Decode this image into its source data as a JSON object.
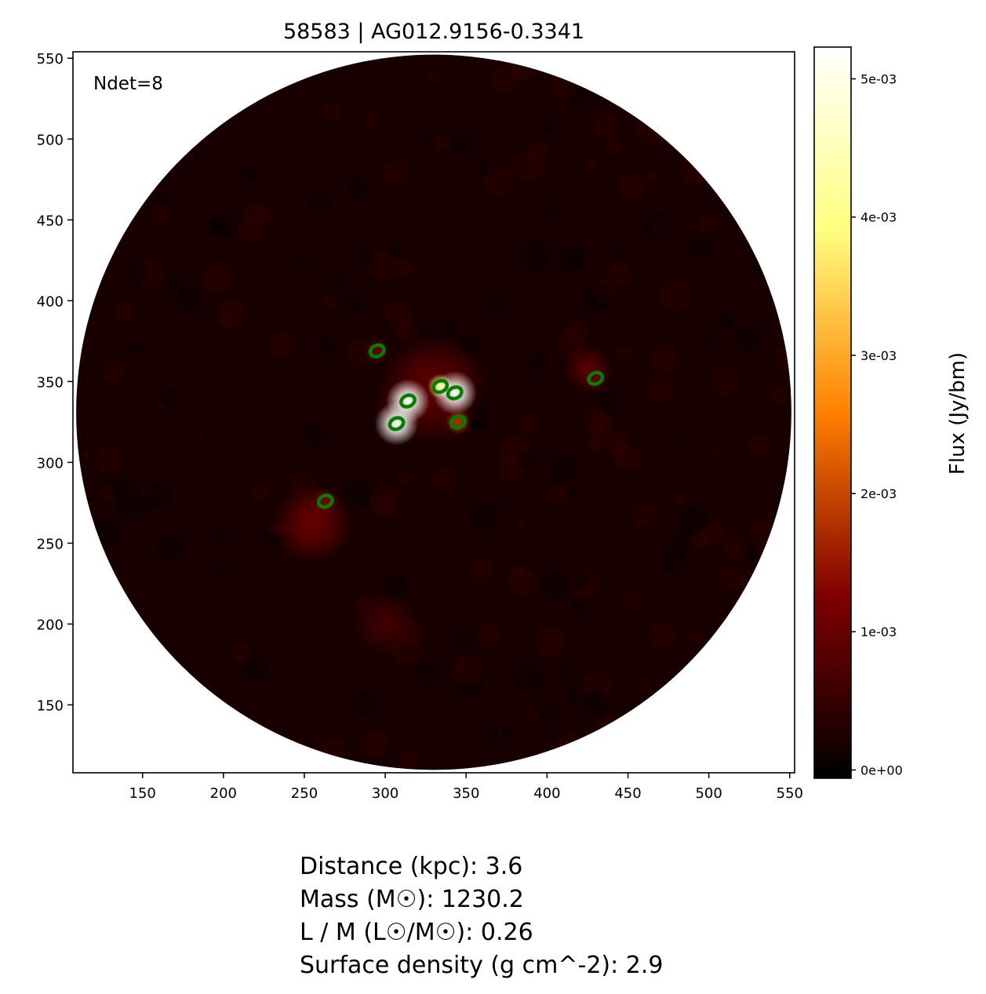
{
  "chart_data": {
    "type": "heatmap",
    "title": "58583 | AG012.9156-0.3341",
    "annotation": "Ndet=8",
    "xlabel": "",
    "ylabel": "",
    "xlim": [
      107,
      553
    ],
    "ylim": [
      108,
      554
    ],
    "xticks": [
      150,
      200,
      250,
      300,
      350,
      400,
      450,
      500,
      550
    ],
    "yticks": [
      150,
      200,
      250,
      300,
      350,
      400,
      450,
      500,
      550
    ],
    "grid": false,
    "colormap": "afmhot",
    "colorbar": {
      "label": "Flux (Jy/bm)",
      "range": [
        -6e-05,
        0.00523
      ],
      "ticks": [
        0,
        0.001,
        0.002,
        0.003,
        0.004,
        0.005
      ],
      "tick_labels": [
        "0e+00",
        "1e-03",
        "2e-03",
        "3e-03",
        "4e-03",
        "5e-03"
      ]
    },
    "field": {
      "center": [
        330,
        331
      ],
      "radius": 221
    },
    "detections": [
      {
        "x": 295,
        "y": 369,
        "peak_flux": 0.001
      },
      {
        "x": 314,
        "y": 338,
        "peak_flux": 0.0052
      },
      {
        "x": 307,
        "y": 324,
        "peak_flux": 0.0052
      },
      {
        "x": 334,
        "y": 347,
        "peak_flux": 0.004
      },
      {
        "x": 343,
        "y": 343,
        "peak_flux": 0.0052
      },
      {
        "x": 345,
        "y": 325,
        "peak_flux": 0.0018
      },
      {
        "x": 430,
        "y": 352,
        "peak_flux": 0.001
      },
      {
        "x": 263,
        "y": 276,
        "peak_flux": 0.0012
      }
    ],
    "detection_color": "#008000"
  },
  "info": {
    "distance": "Distance (kpc): 3.6",
    "mass": "Mass (M☉): 1230.2",
    "lm": "L / M (L☉/M☉): 0.26",
    "surface_density": "Surface density (g cm^-2): 2.9"
  }
}
